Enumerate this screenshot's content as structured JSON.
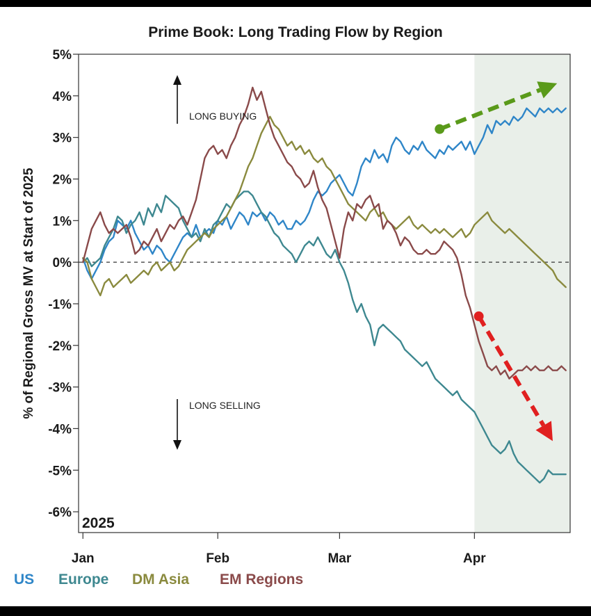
{
  "chart_data": {
    "type": "line",
    "title": "Prime Book: Long Trading Flow by Region",
    "ylabel": "% of Regional Gross MV at Start of 2025",
    "xlabel": "",
    "year_label": "2025",
    "ylim": [
      -6.5,
      5
    ],
    "y_ticks": [
      5,
      4,
      3,
      2,
      1,
      0,
      -1,
      -2,
      -3,
      -4,
      -5,
      -6
    ],
    "y_tick_labels": [
      "5%",
      "4%",
      "3%",
      "2%",
      "1%",
      "0%",
      "-1%",
      "-2%",
      "-3%",
      "-4%",
      "-5%",
      "-6%"
    ],
    "x_ticks": [
      {
        "label": "Jan",
        "day": 1
      },
      {
        "label": "Feb",
        "day": 32
      },
      {
        "label": "Mar",
        "day": 60
      },
      {
        "label": "Apr",
        "day": 91
      }
    ],
    "xlim_days": [
      0,
      113
    ],
    "highlight_from_day": 91,
    "zero_line": "dashed",
    "annotations": [
      {
        "text": "LONG BUYING",
        "arrow": "up"
      },
      {
        "text": "LONG SELLING",
        "arrow": "down"
      }
    ],
    "trend_arrows": [
      {
        "color": "#5a9a1a",
        "from": [
          83,
          3.2
        ],
        "to": [
          110,
          4.3
        ]
      },
      {
        "color": "#e02020",
        "from": [
          92,
          -1.3
        ],
        "to": [
          109,
          -4.3
        ]
      }
    ],
    "series": [
      {
        "name": "US",
        "color": "#2f86c8",
        "x": [
          1,
          2,
          3,
          4,
          5,
          6,
          7,
          8,
          9,
          10,
          11,
          12,
          13,
          14,
          15,
          16,
          17,
          18,
          19,
          20,
          21,
          22,
          23,
          24,
          25,
          26,
          27,
          28,
          29,
          30,
          31,
          32,
          33,
          34,
          35,
          36,
          37,
          38,
          39,
          40,
          41,
          42,
          43,
          44,
          45,
          46,
          47,
          48,
          49,
          50,
          51,
          52,
          53,
          54,
          55,
          56,
          57,
          58,
          59,
          60,
          61,
          62,
          63,
          64,
          65,
          66,
          67,
          68,
          69,
          70,
          71,
          72,
          73,
          74,
          75,
          76,
          77,
          78,
          79,
          80,
          81,
          82,
          83,
          84,
          85,
          86,
          87,
          88,
          89,
          90,
          91,
          92,
          93,
          94,
          95,
          96,
          97,
          98,
          99,
          100,
          101,
          102,
          103,
          104,
          105,
          106,
          107,
          108,
          109,
          110,
          111,
          112
        ],
        "y": [
          0.1,
          -0.2,
          -0.4,
          -0.2,
          0.0,
          0.3,
          0.5,
          0.6,
          1.0,
          0.9,
          0.8,
          1.0,
          0.7,
          0.5,
          0.3,
          0.4,
          0.2,
          0.4,
          0.3,
          0.1,
          0.0,
          0.2,
          0.4,
          0.6,
          0.7,
          0.6,
          0.9,
          0.6,
          0.7,
          0.8,
          0.7,
          1.0,
          0.9,
          1.1,
          0.8,
          1.0,
          1.2,
          1.1,
          0.9,
          1.2,
          1.1,
          1.2,
          1.0,
          1.2,
          1.1,
          0.9,
          1.0,
          0.8,
          0.8,
          1.0,
          0.9,
          1.0,
          1.2,
          1.5,
          1.7,
          1.6,
          1.7,
          1.9,
          2.0,
          2.1,
          1.9,
          1.7,
          1.6,
          1.9,
          2.3,
          2.5,
          2.4,
          2.7,
          2.5,
          2.6,
          2.4,
          2.8,
          3.0,
          2.9,
          2.7,
          2.6,
          2.8,
          2.7,
          2.9,
          2.7,
          2.6,
          2.5,
          2.7,
          2.6,
          2.8,
          2.7,
          2.8,
          2.9,
          2.7,
          2.9,
          2.6,
          2.8,
          3.0,
          3.3,
          3.1,
          3.4,
          3.3,
          3.4,
          3.3,
          3.5,
          3.4,
          3.5,
          3.7,
          3.6,
          3.5,
          3.7,
          3.6,
          3.7,
          3.6,
          3.7,
          3.6,
          3.7
        ]
      },
      {
        "name": "Europe",
        "color": "#3e8890",
        "x": [
          1,
          2,
          3,
          4,
          5,
          6,
          7,
          8,
          9,
          10,
          11,
          12,
          13,
          14,
          15,
          16,
          17,
          18,
          19,
          20,
          21,
          22,
          23,
          24,
          25,
          26,
          27,
          28,
          29,
          30,
          31,
          32,
          33,
          34,
          35,
          36,
          37,
          38,
          39,
          40,
          41,
          42,
          43,
          44,
          45,
          46,
          47,
          48,
          49,
          50,
          51,
          52,
          53,
          54,
          55,
          56,
          57,
          58,
          59,
          60,
          61,
          62,
          63,
          64,
          65,
          66,
          67,
          68,
          69,
          70,
          71,
          72,
          73,
          74,
          75,
          76,
          77,
          78,
          79,
          80,
          81,
          82,
          83,
          84,
          85,
          86,
          87,
          88,
          89,
          90,
          91,
          92,
          93,
          94,
          95,
          96,
          97,
          98,
          99,
          100,
          101,
          102,
          103,
          104,
          105,
          106,
          107,
          108,
          109,
          110,
          111,
          112
        ],
        "y": [
          0.0,
          0.1,
          -0.1,
          0.0,
          0.1,
          0.4,
          0.6,
          0.8,
          1.1,
          1.0,
          0.7,
          0.9,
          1.0,
          1.2,
          0.9,
          1.3,
          1.1,
          1.4,
          1.2,
          1.6,
          1.5,
          1.4,
          1.3,
          1.0,
          0.8,
          0.6,
          0.7,
          0.5,
          0.8,
          0.6,
          0.9,
          1.0,
          1.2,
          1.4,
          1.3,
          1.5,
          1.6,
          1.7,
          1.7,
          1.6,
          1.4,
          1.2,
          1.1,
          0.9,
          0.7,
          0.6,
          0.4,
          0.3,
          0.2,
          0.0,
          0.2,
          0.4,
          0.5,
          0.4,
          0.6,
          0.4,
          0.2,
          0.1,
          0.3,
          0.0,
          -0.2,
          -0.5,
          -0.9,
          -1.2,
          -1.0,
          -1.3,
          -1.5,
          -2.0,
          -1.6,
          -1.5,
          -1.6,
          -1.7,
          -1.8,
          -1.9,
          -2.1,
          -2.2,
          -2.3,
          -2.4,
          -2.5,
          -2.4,
          -2.6,
          -2.8,
          -2.9,
          -3.0,
          -3.1,
          -3.2,
          -3.1,
          -3.3,
          -3.4,
          -3.5,
          -3.6,
          -3.8,
          -4.0,
          -4.2,
          -4.4,
          -4.5,
          -4.6,
          -4.5,
          -4.3,
          -4.6,
          -4.8,
          -4.9,
          -5.0,
          -5.1,
          -5.2,
          -5.3,
          -5.2,
          -5.0,
          -5.1,
          -5.1,
          -5.1,
          -5.1
        ]
      },
      {
        "name": "DM Asia",
        "color": "#8a8a3e",
        "x": [
          1,
          2,
          3,
          4,
          5,
          6,
          7,
          8,
          9,
          10,
          11,
          12,
          13,
          14,
          15,
          16,
          17,
          18,
          19,
          20,
          21,
          22,
          23,
          24,
          25,
          26,
          27,
          28,
          29,
          30,
          31,
          32,
          33,
          34,
          35,
          36,
          37,
          38,
          39,
          40,
          41,
          42,
          43,
          44,
          45,
          46,
          47,
          48,
          49,
          50,
          51,
          52,
          53,
          54,
          55,
          56,
          57,
          58,
          59,
          60,
          61,
          62,
          63,
          64,
          65,
          66,
          67,
          68,
          69,
          70,
          71,
          72,
          73,
          74,
          75,
          76,
          77,
          78,
          79,
          80,
          81,
          82,
          83,
          84,
          85,
          86,
          87,
          88,
          89,
          90,
          91,
          92,
          93,
          94,
          95,
          96,
          97,
          98,
          99,
          100,
          101,
          102,
          103,
          104,
          105,
          106,
          107,
          108,
          109,
          110,
          111,
          112
        ],
        "y": [
          0.1,
          0.0,
          -0.4,
          -0.6,
          -0.8,
          -0.5,
          -0.4,
          -0.6,
          -0.5,
          -0.4,
          -0.3,
          -0.5,
          -0.4,
          -0.3,
          -0.2,
          -0.3,
          -0.1,
          0.0,
          -0.2,
          -0.1,
          0.0,
          -0.2,
          -0.1,
          0.1,
          0.3,
          0.4,
          0.5,
          0.6,
          0.7,
          0.6,
          0.8,
          0.9,
          1.0,
          1.1,
          1.3,
          1.5,
          1.7,
          2.0,
          2.3,
          2.5,
          2.8,
          3.1,
          3.3,
          3.5,
          3.3,
          3.2,
          3.0,
          2.8,
          2.9,
          2.7,
          2.8,
          2.6,
          2.7,
          2.5,
          2.4,
          2.5,
          2.3,
          2.2,
          2.0,
          1.8,
          1.6,
          1.4,
          1.3,
          1.2,
          1.1,
          1.0,
          1.2,
          1.3,
          1.1,
          1.2,
          1.0,
          0.9,
          0.8,
          0.9,
          1.0,
          1.1,
          0.9,
          0.8,
          0.9,
          0.8,
          0.7,
          0.8,
          0.7,
          0.8,
          0.7,
          0.6,
          0.7,
          0.8,
          0.6,
          0.7,
          0.9,
          1.0,
          1.1,
          1.2,
          1.0,
          0.9,
          0.8,
          0.7,
          0.8,
          0.7,
          0.6,
          0.5,
          0.4,
          0.3,
          0.2,
          0.1,
          0.0,
          -0.1,
          -0.2,
          -0.4,
          -0.5,
          -0.6
        ]
      },
      {
        "name": "EM Regions",
        "color": "#8a4a4a",
        "x": [
          1,
          2,
          3,
          4,
          5,
          6,
          7,
          8,
          9,
          10,
          11,
          12,
          13,
          14,
          15,
          16,
          17,
          18,
          19,
          20,
          21,
          22,
          23,
          24,
          25,
          26,
          27,
          28,
          29,
          30,
          31,
          32,
          33,
          34,
          35,
          36,
          37,
          38,
          39,
          40,
          41,
          42,
          43,
          44,
          45,
          46,
          47,
          48,
          49,
          50,
          51,
          52,
          53,
          54,
          55,
          56,
          57,
          58,
          59,
          60,
          61,
          62,
          63,
          64,
          65,
          66,
          67,
          68,
          69,
          70,
          71,
          72,
          73,
          74,
          75,
          76,
          77,
          78,
          79,
          80,
          81,
          82,
          83,
          84,
          85,
          86,
          87,
          88,
          89,
          90,
          91,
          92,
          93,
          94,
          95,
          96,
          97,
          98,
          99,
          100,
          101,
          102,
          103,
          104,
          105,
          106,
          107,
          108,
          109,
          110,
          111,
          112
        ],
        "y": [
          0.0,
          0.4,
          0.8,
          1.0,
          1.2,
          0.9,
          0.7,
          0.8,
          0.7,
          0.8,
          0.9,
          0.6,
          0.2,
          0.3,
          0.5,
          0.4,
          0.6,
          0.8,
          0.5,
          0.7,
          0.9,
          0.8,
          1.0,
          1.1,
          0.9,
          1.2,
          1.5,
          2.0,
          2.5,
          2.7,
          2.8,
          2.6,
          2.7,
          2.5,
          2.8,
          3.0,
          3.3,
          3.5,
          3.8,
          4.2,
          3.9,
          4.1,
          3.7,
          3.3,
          3.0,
          2.8,
          2.6,
          2.4,
          2.3,
          2.1,
          2.0,
          1.8,
          1.9,
          2.2,
          1.8,
          1.5,
          1.3,
          0.9,
          0.5,
          0.1,
          0.8,
          1.2,
          1.0,
          1.4,
          1.3,
          1.5,
          1.6,
          1.3,
          1.4,
          0.8,
          1.0,
          0.9,
          0.7,
          0.4,
          0.6,
          0.5,
          0.3,
          0.2,
          0.2,
          0.3,
          0.2,
          0.2,
          0.3,
          0.5,
          0.4,
          0.3,
          0.1,
          -0.3,
          -0.8,
          -1.1,
          -1.5,
          -1.9,
          -2.2,
          -2.5,
          -2.6,
          -2.5,
          -2.7,
          -2.6,
          -2.8,
          -2.7,
          -2.6,
          -2.6,
          -2.5,
          -2.6,
          -2.5,
          -2.6,
          -2.6,
          -2.5,
          -2.6,
          -2.6,
          -2.5,
          -2.6
        ]
      }
    ]
  }
}
